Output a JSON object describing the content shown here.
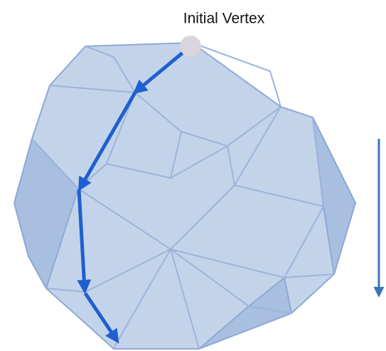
{
  "label": "Initial Vertex"
}
